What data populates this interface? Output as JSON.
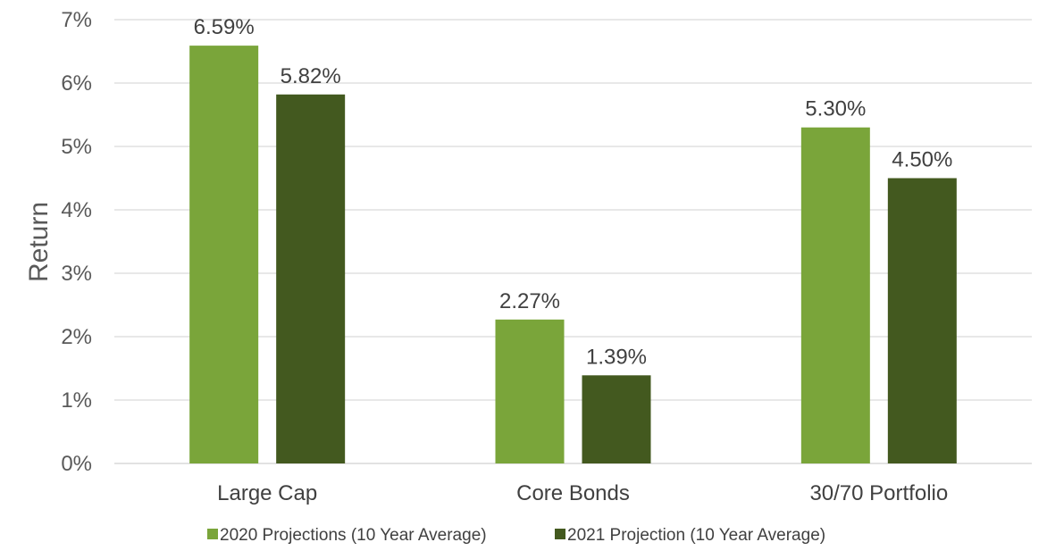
{
  "chart_data": {
    "type": "bar",
    "title": "",
    "xlabel": "",
    "ylabel": "Return",
    "categories": [
      "Large Cap",
      "Core Bonds",
      "30/70 Portfolio"
    ],
    "series": [
      {
        "name": "2020 Projections (10 Year Average)",
        "color": "#7aa53a",
        "values": [
          6.59,
          2.27,
          5.3
        ],
        "labels": [
          "6.59%",
          "2.27%",
          "5.30%"
        ]
      },
      {
        "name": "2021 Projection (10 Year Average)",
        "color": "#43591f",
        "values": [
          5.82,
          1.39,
          4.5
        ],
        "labels": [
          "5.82%",
          "1.39%",
          "4.50%"
        ]
      }
    ],
    "ylim": [
      0,
      7
    ],
    "yticks": [
      0,
      1,
      2,
      3,
      4,
      5,
      6,
      7
    ],
    "ytick_labels": [
      "0%",
      "1%",
      "2%",
      "3%",
      "4%",
      "5%",
      "6%",
      "7%"
    ],
    "grid": true,
    "legend_position": "bottom"
  }
}
